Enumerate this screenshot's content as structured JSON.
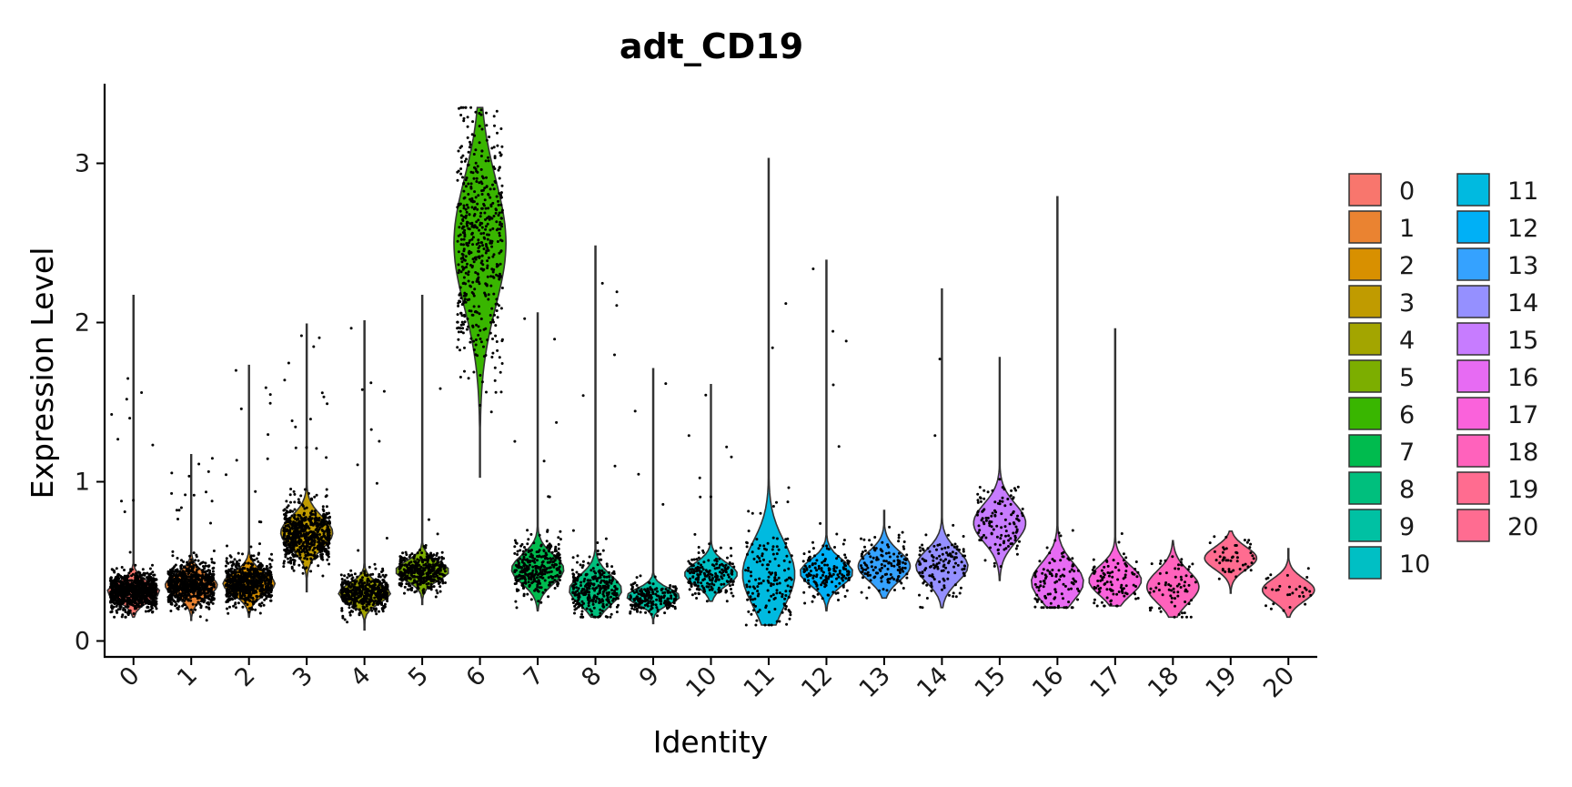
{
  "chart_data": {
    "type": "violin",
    "title": "adt_CD19",
    "xlabel": "Identity",
    "ylabel": "Expression Level",
    "ylim": [
      -0.1,
      3.5
    ],
    "yticks": [
      0,
      1,
      2,
      3
    ],
    "grid": false,
    "legend_position": "right",
    "categories": [
      "0",
      "1",
      "2",
      "3",
      "4",
      "5",
      "6",
      "7",
      "8",
      "9",
      "10",
      "11",
      "12",
      "13",
      "14",
      "15",
      "16",
      "17",
      "18",
      "19",
      "20"
    ],
    "colors": [
      "#F8766D",
      "#EA8331",
      "#D89000",
      "#C09B00",
      "#A3A500",
      "#7CAE00",
      "#39B600",
      "#00BB4E",
      "#00BF7D",
      "#00C1A3",
      "#00BFC4",
      "#00BAE0",
      "#00B0F6",
      "#35A2FF",
      "#9590FF",
      "#C77CFF",
      "#E76BF3",
      "#FA62DB",
      "#FF62BC",
      "#FF6C90",
      "#FF6C91"
    ],
    "violins": [
      {
        "min": 0.15,
        "max": 2.17,
        "center": 0.31,
        "spread": 0.06,
        "n": 900
      },
      {
        "min": 0.13,
        "max": 1.17,
        "center": 0.35,
        "spread": 0.07,
        "n": 750
      },
      {
        "min": 0.15,
        "max": 1.73,
        "center": 0.36,
        "spread": 0.07,
        "n": 700
      },
      {
        "min": 0.31,
        "max": 1.99,
        "center": 0.68,
        "spread": 0.1,
        "n": 650
      },
      {
        "min": 0.07,
        "max": 2.01,
        "center": 0.3,
        "spread": 0.06,
        "n": 500
      },
      {
        "min": 0.23,
        "max": 2.17,
        "center": 0.44,
        "spread": 0.06,
        "n": 420
      },
      {
        "min": 1.03,
        "max": 3.35,
        "center": 2.5,
        "spread": 0.4,
        "n": 520
      },
      {
        "min": 0.19,
        "max": 2.06,
        "center": 0.45,
        "spread": 0.09,
        "n": 330
      },
      {
        "min": 0.15,
        "max": 2.48,
        "center": 0.32,
        "spread": 0.09,
        "n": 300
      },
      {
        "min": 0.11,
        "max": 1.71,
        "center": 0.28,
        "spread": 0.05,
        "n": 220
      },
      {
        "min": 0.25,
        "max": 1.61,
        "center": 0.42,
        "spread": 0.07,
        "n": 200
      },
      {
        "min": 0.1,
        "max": 3.03,
        "center": 0.42,
        "spread": 0.2,
        "n": 160
      },
      {
        "min": 0.19,
        "max": 2.39,
        "center": 0.43,
        "spread": 0.08,
        "n": 160
      },
      {
        "min": 0.27,
        "max": 0.82,
        "center": 0.47,
        "spread": 0.09,
        "n": 140
      },
      {
        "min": 0.21,
        "max": 2.21,
        "center": 0.47,
        "spread": 0.1,
        "n": 130
      },
      {
        "min": 0.38,
        "max": 1.78,
        "center": 0.74,
        "spread": 0.12,
        "n": 120
      },
      {
        "min": 0.21,
        "max": 2.79,
        "center": 0.37,
        "spread": 0.12,
        "n": 110
      },
      {
        "min": 0.22,
        "max": 1.96,
        "center": 0.38,
        "spread": 0.09,
        "n": 100
      },
      {
        "min": 0.15,
        "max": 0.63,
        "center": 0.34,
        "spread": 0.1,
        "n": 70
      },
      {
        "min": 0.3,
        "max": 0.69,
        "center": 0.52,
        "spread": 0.07,
        "n": 50
      },
      {
        "min": 0.15,
        "max": 0.58,
        "center": 0.32,
        "spread": 0.07,
        "n": 30
      }
    ]
  }
}
